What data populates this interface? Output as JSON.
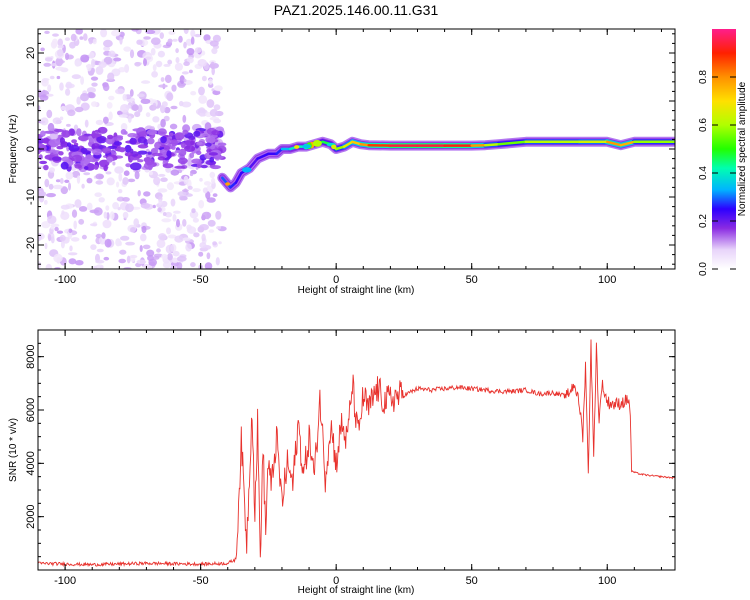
{
  "chart_data": [
    {
      "type": "heatmap",
      "title": "PAZ1.2025.146.00.11.G31",
      "xlabel": "Height of straight line (km)",
      "ylabel": "Frequency (Hz)",
      "xlim": [
        -110,
        125
      ],
      "ylim": [
        -25,
        25
      ],
      "xticks": [
        -100,
        -50,
        0,
        50,
        100
      ],
      "yticks": [
        -20,
        -10,
        0,
        10,
        20
      ],
      "colorbar": {
        "label": "Normalized spectral amplitude",
        "range": [
          0,
          1
        ],
        "ticks": [
          0.0,
          0.2,
          0.4,
          0.6,
          0.8
        ],
        "tick_labels": [
          "0.0",
          "0.2",
          "0.4",
          "0.6",
          "0.8"
        ],
        "colormap": [
          "#ffffff",
          "#e8d4fa",
          "#b070f0",
          "#8a2be2",
          "#2d00ff",
          "#00b4ff",
          "#00ffb0",
          "#22ff00",
          "#b0ff00",
          "#ffe000",
          "#ff9000",
          "#ff2000",
          "#ff1e8c"
        ]
      },
      "ridge": {
        "x": [
          -42,
          -39,
          -37,
          -35,
          -32,
          -29,
          -25,
          -22,
          -20,
          -17,
          -14,
          -11,
          -8,
          -5,
          -2,
          0,
          3,
          6,
          9,
          12,
          20,
          30,
          40,
          50,
          55,
          60,
          70,
          80,
          90,
          100,
          105,
          110,
          125
        ],
        "y": [
          -6,
          -8,
          -7,
          -5,
          -4,
          -2,
          -1,
          -1,
          0,
          0,
          0.5,
          0.5,
          1,
          1.5,
          1,
          0,
          0.5,
          1.5,
          1,
          0.8,
          0.7,
          0.7,
          0.7,
          0.7,
          0.8,
          1,
          1.5,
          1.5,
          1.5,
          1.5,
          0.8,
          1.5,
          1.5
        ],
        "amplitude": [
          0.35,
          0.4,
          0.3,
          0.35,
          0.3,
          0.3,
          0.35,
          0.3,
          0.4,
          0.45,
          0.5,
          0.5,
          0.6,
          0.55,
          0.55,
          0.6,
          0.7,
          0.75,
          0.8,
          0.85,
          0.95,
          0.95,
          0.95,
          0.9,
          0.75,
          0.6,
          0.65,
          0.7,
          0.65,
          0.75,
          0.9,
          0.7,
          0.6
        ]
      },
      "noise_region_x": [
        -110,
        -42
      ]
    },
    {
      "type": "line",
      "xlabel": "Height of straight line (km)",
      "ylabel": "SNR (10 * v/v)",
      "xlim": [
        -110,
        125
      ],
      "ylim": [
        0,
        9000
      ],
      "xticks": [
        -100,
        -50,
        0,
        50,
        100
      ],
      "yticks": [
        2000,
        4000,
        6000,
        8000
      ],
      "color": "#e8322d",
      "series": [
        {
          "x": [
            -110,
            -90,
            -70,
            -50,
            -40,
            -37,
            -36,
            -35,
            -33,
            -31,
            -30,
            -29,
            -28,
            -27,
            -26,
            -25,
            -24,
            -22,
            -20,
            -18,
            -16,
            -14,
            -12,
            -10,
            -8,
            -6,
            -4,
            -2,
            0,
            2,
            4,
            6,
            8,
            10,
            12,
            15,
            18,
            22,
            26,
            30,
            35,
            40,
            45,
            50,
            55,
            60,
            65,
            70,
            75,
            80,
            85,
            88,
            90,
            91,
            92,
            93,
            94,
            95,
            96,
            97,
            98,
            100,
            103,
            106,
            108,
            108.5,
            109,
            112,
            115,
            120,
            125
          ],
          "y": [
            250,
            200,
            250,
            220,
            250,
            400,
            2500,
            4800,
            1000,
            6200,
            2000,
            5500,
            500,
            4500,
            1500,
            4200,
            3000,
            5000,
            2500,
            4000,
            3200,
            5500,
            3500,
            5000,
            3500,
            6500,
            3500,
            5500,
            4000,
            5500,
            4800,
            7000,
            5000,
            6500,
            6000,
            6800,
            6300,
            6500,
            6600,
            6800,
            6750,
            6800,
            6850,
            6800,
            6750,
            6700,
            6700,
            6750,
            6600,
            6650,
            6500,
            7000,
            6000,
            5000,
            7800,
            3500,
            8600,
            4200,
            8400,
            5500,
            7000,
            6300,
            6200,
            6300,
            6400,
            5800,
            3700,
            3600,
            3550,
            3500,
            3450
          ]
        }
      ]
    }
  ]
}
